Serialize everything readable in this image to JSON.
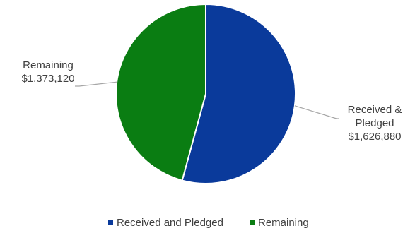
{
  "chart_data": {
    "type": "pie",
    "title": "",
    "categories": [
      "Received and Pledged",
      "Remaining"
    ],
    "values": [
      1626880,
      1373120
    ],
    "colors": [
      "#0a3a9b",
      "#0a7d12"
    ],
    "data_labels": [
      [
        "Received &",
        "Pledged",
        "$1,626,880"
      ],
      [
        "Remaining",
        "$1,373,120"
      ]
    ],
    "legend": {
      "position": "bottom",
      "entries": [
        "Received and Pledged",
        "Remaining"
      ]
    }
  }
}
